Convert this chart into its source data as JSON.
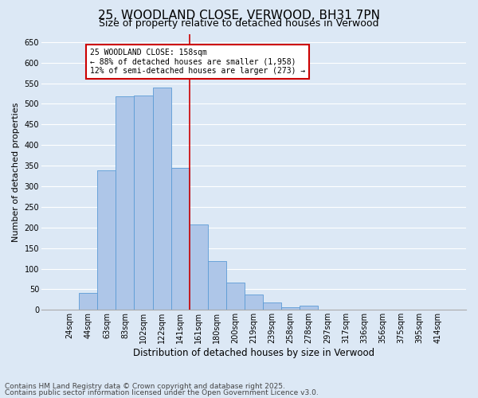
{
  "title": "25, WOODLAND CLOSE, VERWOOD, BH31 7PN",
  "subtitle": "Size of property relative to detached houses in Verwood",
  "xlabel": "Distribution of detached houses by size in Verwood",
  "ylabel": "Number of detached properties",
  "bins": [
    "24sqm",
    "44sqm",
    "63sqm",
    "83sqm",
    "102sqm",
    "122sqm",
    "141sqm",
    "161sqm",
    "180sqm",
    "200sqm",
    "219sqm",
    "239sqm",
    "258sqm",
    "278sqm",
    "297sqm",
    "317sqm",
    "336sqm",
    "356sqm",
    "375sqm",
    "395sqm",
    "414sqm"
  ],
  "values": [
    0,
    42,
    338,
    519,
    521,
    540,
    344,
    207,
    119,
    67,
    38,
    17,
    7,
    10,
    0,
    0,
    1,
    0,
    0,
    0,
    1
  ],
  "bar_color": "#aec6e8",
  "bar_edge_color": "#5b9bd5",
  "annotation_text": "25 WOODLAND CLOSE: 158sqm\n← 88% of detached houses are smaller (1,958)\n12% of semi-detached houses are larger (273) →",
  "annotation_box_color": "#ffffff",
  "annotation_box_edge": "#cc0000",
  "vline_color": "#cc0000",
  "vline_x": 6.5,
  "ylim": [
    0,
    670
  ],
  "yticks": [
    0,
    50,
    100,
    150,
    200,
    250,
    300,
    350,
    400,
    450,
    500,
    550,
    600,
    650
  ],
  "footer_line1": "Contains HM Land Registry data © Crown copyright and database right 2025.",
  "footer_line2": "Contains public sector information licensed under the Open Government Licence v3.0.",
  "bg_color": "#dce8f5",
  "title_fontsize": 11,
  "subtitle_fontsize": 9,
  "xlabel_fontsize": 8.5,
  "ylabel_fontsize": 8,
  "tick_fontsize": 7,
  "annotation_fontsize": 7,
  "footer_fontsize": 6.5
}
